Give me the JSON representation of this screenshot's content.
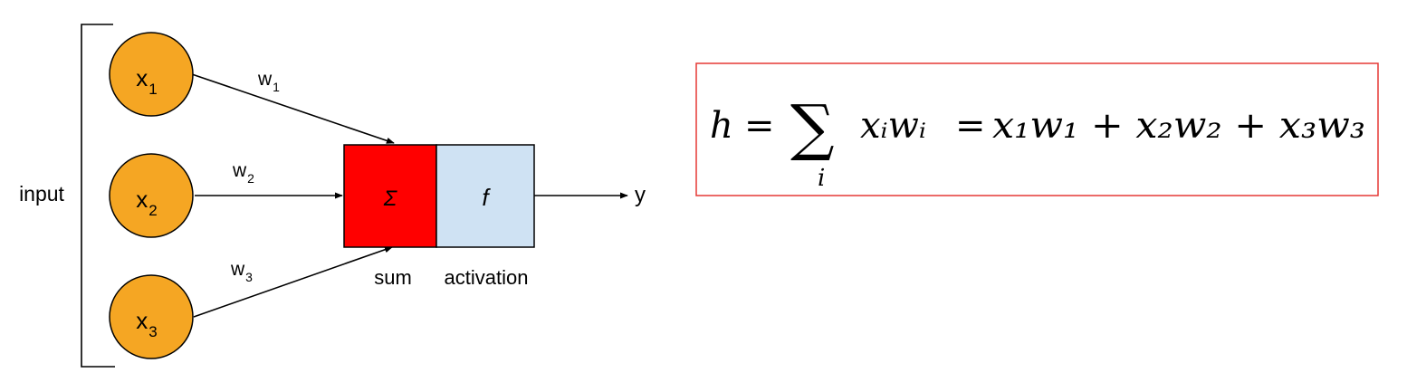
{
  "input_label": "input",
  "inputs": [
    {
      "base": "x",
      "sub": "1"
    },
    {
      "base": "x",
      "sub": "2"
    },
    {
      "base": "x",
      "sub": "3"
    }
  ],
  "weights": [
    {
      "base": "w",
      "sub": "1"
    },
    {
      "base": "w",
      "sub": "2"
    },
    {
      "base": "w",
      "sub": "3"
    }
  ],
  "sum_block": {
    "symbol": "Σ",
    "caption": "sum"
  },
  "activation_block": {
    "symbol": "f",
    "caption": "activation"
  },
  "output_label": "y",
  "formula": {
    "lhs": "h",
    "eq": "=",
    "sum_symbol": "∑",
    "sum_index": "i",
    "middle": "xᵢwᵢ",
    "rhs": "x₁w₁ + x₂w₂ + x₃w₃"
  },
  "colors": {
    "input_node": "#F5A623",
    "sum_block": "#FF0000",
    "activation_block": "#CFE2F3",
    "formula_border": "#E53935"
  }
}
